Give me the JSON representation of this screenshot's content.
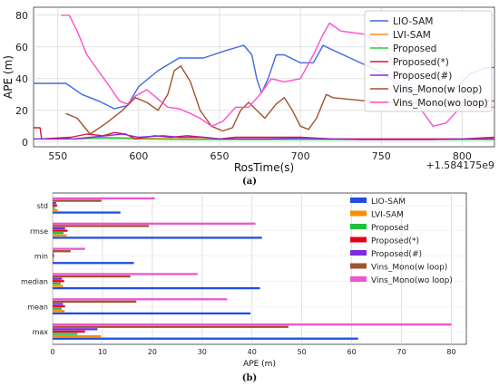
{
  "chart_data": [
    {
      "type": "line",
      "xlabel": "RosTime(s)",
      "ylabel": "APE (m)",
      "x_offset_label": "+1.584175e9",
      "xlim": [
        535,
        820
      ],
      "ylim": [
        -3,
        85
      ],
      "x_ticks": [
        550,
        600,
        650,
        700,
        750,
        800
      ],
      "y_ticks": [
        0,
        20,
        40,
        60,
        80
      ],
      "grid": true,
      "legend_position": "top-right",
      "caption": "(a)",
      "series": [
        {
          "name": "LIO-SAM",
          "color": "#4169e1",
          "points": [
            [
              535,
              37
            ],
            [
              555,
              37
            ],
            [
              565,
              30
            ],
            [
              575,
              26
            ],
            [
              585,
              21
            ],
            [
              593,
              23
            ],
            [
              600,
              35
            ],
            [
              612,
              45
            ],
            [
              625,
              53
            ],
            [
              640,
              53
            ],
            [
              655,
              58
            ],
            [
              665,
              61
            ],
            [
              670,
              55
            ],
            [
              673,
              40
            ],
            [
              676,
              31
            ],
            [
              680,
              40
            ],
            [
              685,
              55
            ],
            [
              690,
              55
            ],
            [
              700,
              50
            ],
            [
              708,
              50
            ],
            [
              714,
              61
            ],
            [
              720,
              58
            ],
            [
              735,
              51
            ],
            [
              750,
              44
            ],
            [
              760,
              37
            ],
            [
              770,
              33
            ],
            [
              775,
              33
            ],
            [
              785,
              34
            ],
            [
              795,
              33
            ],
            [
              805,
              43
            ],
            [
              815,
              47
            ],
            [
              820,
              47
            ]
          ]
        },
        {
          "name": "LVI-SAM",
          "color": "#ff8c1a",
          "points": [
            [
              535,
              2
            ],
            [
              560,
              2
            ],
            [
              575,
              3
            ],
            [
              600,
              2.5
            ],
            [
              630,
              2
            ],
            [
              660,
              2
            ],
            [
              690,
              2
            ],
            [
              720,
              2
            ],
            [
              750,
              2
            ],
            [
              780,
              2
            ],
            [
              800,
              2
            ],
            [
              820,
              2
            ]
          ]
        },
        {
          "name": "Proposed",
          "color": "#2ecc40",
          "points": [
            [
              535,
              2
            ],
            [
              560,
              2
            ],
            [
              580,
              2.5
            ],
            [
              600,
              2
            ],
            [
              630,
              1.5
            ],
            [
              660,
              1.5
            ],
            [
              700,
              1.5
            ],
            [
              740,
              1.5
            ],
            [
              780,
              1.5
            ],
            [
              820,
              1.5
            ]
          ]
        },
        {
          "name": "Proposed(*)",
          "color": "#dc143c",
          "points": [
            [
              535,
              9
            ],
            [
              539,
              9
            ],
            [
              540,
              2
            ],
            [
              558,
              3
            ],
            [
              568,
              5
            ],
            [
              578,
              4
            ],
            [
              585,
              6
            ],
            [
              592,
              5
            ],
            [
              598,
              2
            ],
            [
              610,
              4
            ],
            [
              620,
              3
            ],
            [
              630,
              4
            ],
            [
              640,
              3
            ],
            [
              650,
              2
            ],
            [
              660,
              3
            ],
            [
              680,
              3
            ],
            [
              700,
              3
            ],
            [
              720,
              2
            ],
            [
              740,
              2
            ],
            [
              760,
              2
            ],
            [
              780,
              2
            ],
            [
              800,
              2
            ],
            [
              820,
              3
            ]
          ]
        },
        {
          "name": "Proposed(#)",
          "color": "#8a2be2",
          "points": [
            [
              535,
              2
            ],
            [
              560,
              2
            ],
            [
              570,
              3
            ],
            [
              580,
              4
            ],
            [
              590,
              5
            ],
            [
              600,
              3
            ],
            [
              615,
              4
            ],
            [
              625,
              3
            ],
            [
              640,
              3
            ],
            [
              650,
              2
            ],
            [
              660,
              2
            ],
            [
              680,
              2
            ],
            [
              700,
              2.5
            ],
            [
              720,
              2
            ],
            [
              740,
              1.5
            ],
            [
              760,
              1.5
            ],
            [
              780,
              1.5
            ],
            [
              800,
              2
            ],
            [
              820,
              2
            ]
          ]
        },
        {
          "name": "Vins_Mono(w loop)",
          "color": "#a0522d",
          "points": [
            [
              555,
              18
            ],
            [
              562,
              15
            ],
            [
              570,
              5
            ],
            [
              580,
              12
            ],
            [
              590,
              20
            ],
            [
              598,
              28
            ],
            [
              605,
              25
            ],
            [
              612,
              20
            ],
            [
              618,
              30
            ],
            [
              622,
              45
            ],
            [
              626,
              48
            ],
            [
              632,
              38
            ],
            [
              638,
              20
            ],
            [
              645,
              10
            ],
            [
              652,
              7
            ],
            [
              658,
              9
            ],
            [
              663,
              20
            ],
            [
              668,
              25
            ],
            [
              673,
              20
            ],
            [
              678,
              15
            ],
            [
              685,
              24
            ],
            [
              690,
              28
            ],
            [
              695,
              20
            ],
            [
              700,
              10
            ],
            [
              705,
              8
            ],
            [
              710,
              15
            ],
            [
              716,
              30
            ],
            [
              720,
              28
            ],
            [
              740,
              26
            ],
            [
              760,
              25
            ],
            [
              780,
              24
            ],
            [
              800,
              25
            ],
            [
              820,
              26
            ]
          ]
        },
        {
          "name": "Vins_Mono(wo loop)",
          "color": "#ff4fc8",
          "points": [
            [
              552,
              80
            ],
            [
              557,
              80
            ],
            [
              562,
              70
            ],
            [
              568,
              55
            ],
            [
              575,
              45
            ],
            [
              582,
              35
            ],
            [
              588,
              26
            ],
            [
              593,
              24
            ],
            [
              598,
              29
            ],
            [
              605,
              33
            ],
            [
              611,
              28
            ],
            [
              618,
              22
            ],
            [
              625,
              21
            ],
            [
              632,
              18
            ],
            [
              638,
              15
            ],
            [
              645,
              10
            ],
            [
              652,
              13
            ],
            [
              660,
              22
            ],
            [
              668,
              22
            ],
            [
              675,
              30
            ],
            [
              682,
              40
            ],
            [
              690,
              38
            ],
            [
              700,
              40
            ],
            [
              708,
              55
            ],
            [
              714,
              68
            ],
            [
              718,
              75
            ],
            [
              725,
              70
            ],
            [
              740,
              68
            ],
            [
              752,
              58
            ],
            [
              765,
              38
            ],
            [
              775,
              20
            ],
            [
              782,
              10
            ],
            [
              790,
              12
            ],
            [
              800,
              23
            ],
            [
              810,
              22
            ],
            [
              820,
              22
            ]
          ]
        }
      ]
    },
    {
      "type": "bar",
      "orientation": "horizontal",
      "xlabel": "APE (m)",
      "xlim": [
        0,
        83
      ],
      "x_ticks": [
        0,
        10,
        20,
        30,
        40,
        50,
        60,
        70,
        80
      ],
      "grid": true,
      "legend_position": "top-right",
      "caption": "(b)",
      "categories": [
        "std",
        "rmse",
        "min",
        "median",
        "mean",
        "max"
      ],
      "series": [
        {
          "name": "LIO-SAM",
          "color": "#1f4fe0",
          "values": [
            13.6,
            42.0,
            16.3,
            41.6,
            39.7,
            61.3
          ]
        },
        {
          "name": "LVI-SAM",
          "color": "#ff8c00",
          "values": [
            1.0,
            2.8,
            0.3,
            2.1,
            2.4,
            9.7
          ]
        },
        {
          "name": "Proposed",
          "color": "#22c03a",
          "values": [
            0.5,
            2.2,
            0.2,
            1.6,
            1.8,
            5.0
          ]
        },
        {
          "name": "Proposed(*)",
          "color": "#e8001c",
          "values": [
            0.9,
            3.0,
            0.3,
            2.3,
            2.5,
            6.5
          ]
        },
        {
          "name": "Proposed(#)",
          "color": "#7b2be2",
          "values": [
            0.7,
            2.5,
            0.2,
            1.9,
            2.1,
            9.0
          ]
        },
        {
          "name": "Vins_Mono(w loop)",
          "color": "#a0522d",
          "values": [
            9.8,
            19.3,
            3.6,
            15.6,
            16.8,
            47.3
          ]
        },
        {
          "name": "Vins_Mono(wo loop)",
          "color": "#ee55cc",
          "values": [
            20.5,
            40.7,
            6.5,
            29.1,
            35.0,
            80.0
          ]
        }
      ]
    }
  ]
}
